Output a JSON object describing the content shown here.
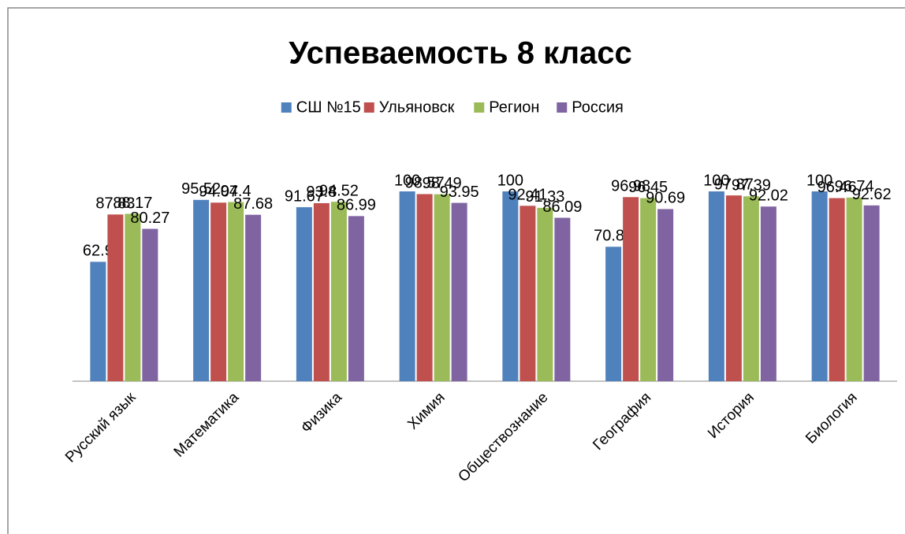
{
  "chart_data": {
    "type": "bar",
    "title": "Успеваемость 8 класс",
    "categories": [
      "Русский язык",
      "Математика",
      "Физика",
      "Химия",
      "Обществознание",
      "География",
      "История",
      "Биология"
    ],
    "series": [
      {
        "name": "СШ №15",
        "color": "#4f81bd",
        "values": [
          62.9,
          95.52,
          91.67,
          100,
          100,
          70.83,
          100,
          100
        ]
      },
      {
        "name": "Ульяновск",
        "color": "#c0504d",
        "values": [
          87.83,
          94.07,
          93.8,
          98.57,
          92.41,
          96.98,
          97.87,
          96.46
        ]
      },
      {
        "name": "Регион",
        "color": "#9bbb59",
        "values": [
          88.17,
          94.4,
          94.52,
          98.49,
          91.33,
          96.45,
          97.39,
          96.74
        ]
      },
      {
        "name": "Россия",
        "color": "#8064a2",
        "values": [
          80.27,
          87.68,
          86.99,
          93.95,
          86.09,
          90.69,
          92.02,
          92.62
        ]
      }
    ],
    "ylim": [
      0,
      100
    ],
    "legend": "top"
  }
}
